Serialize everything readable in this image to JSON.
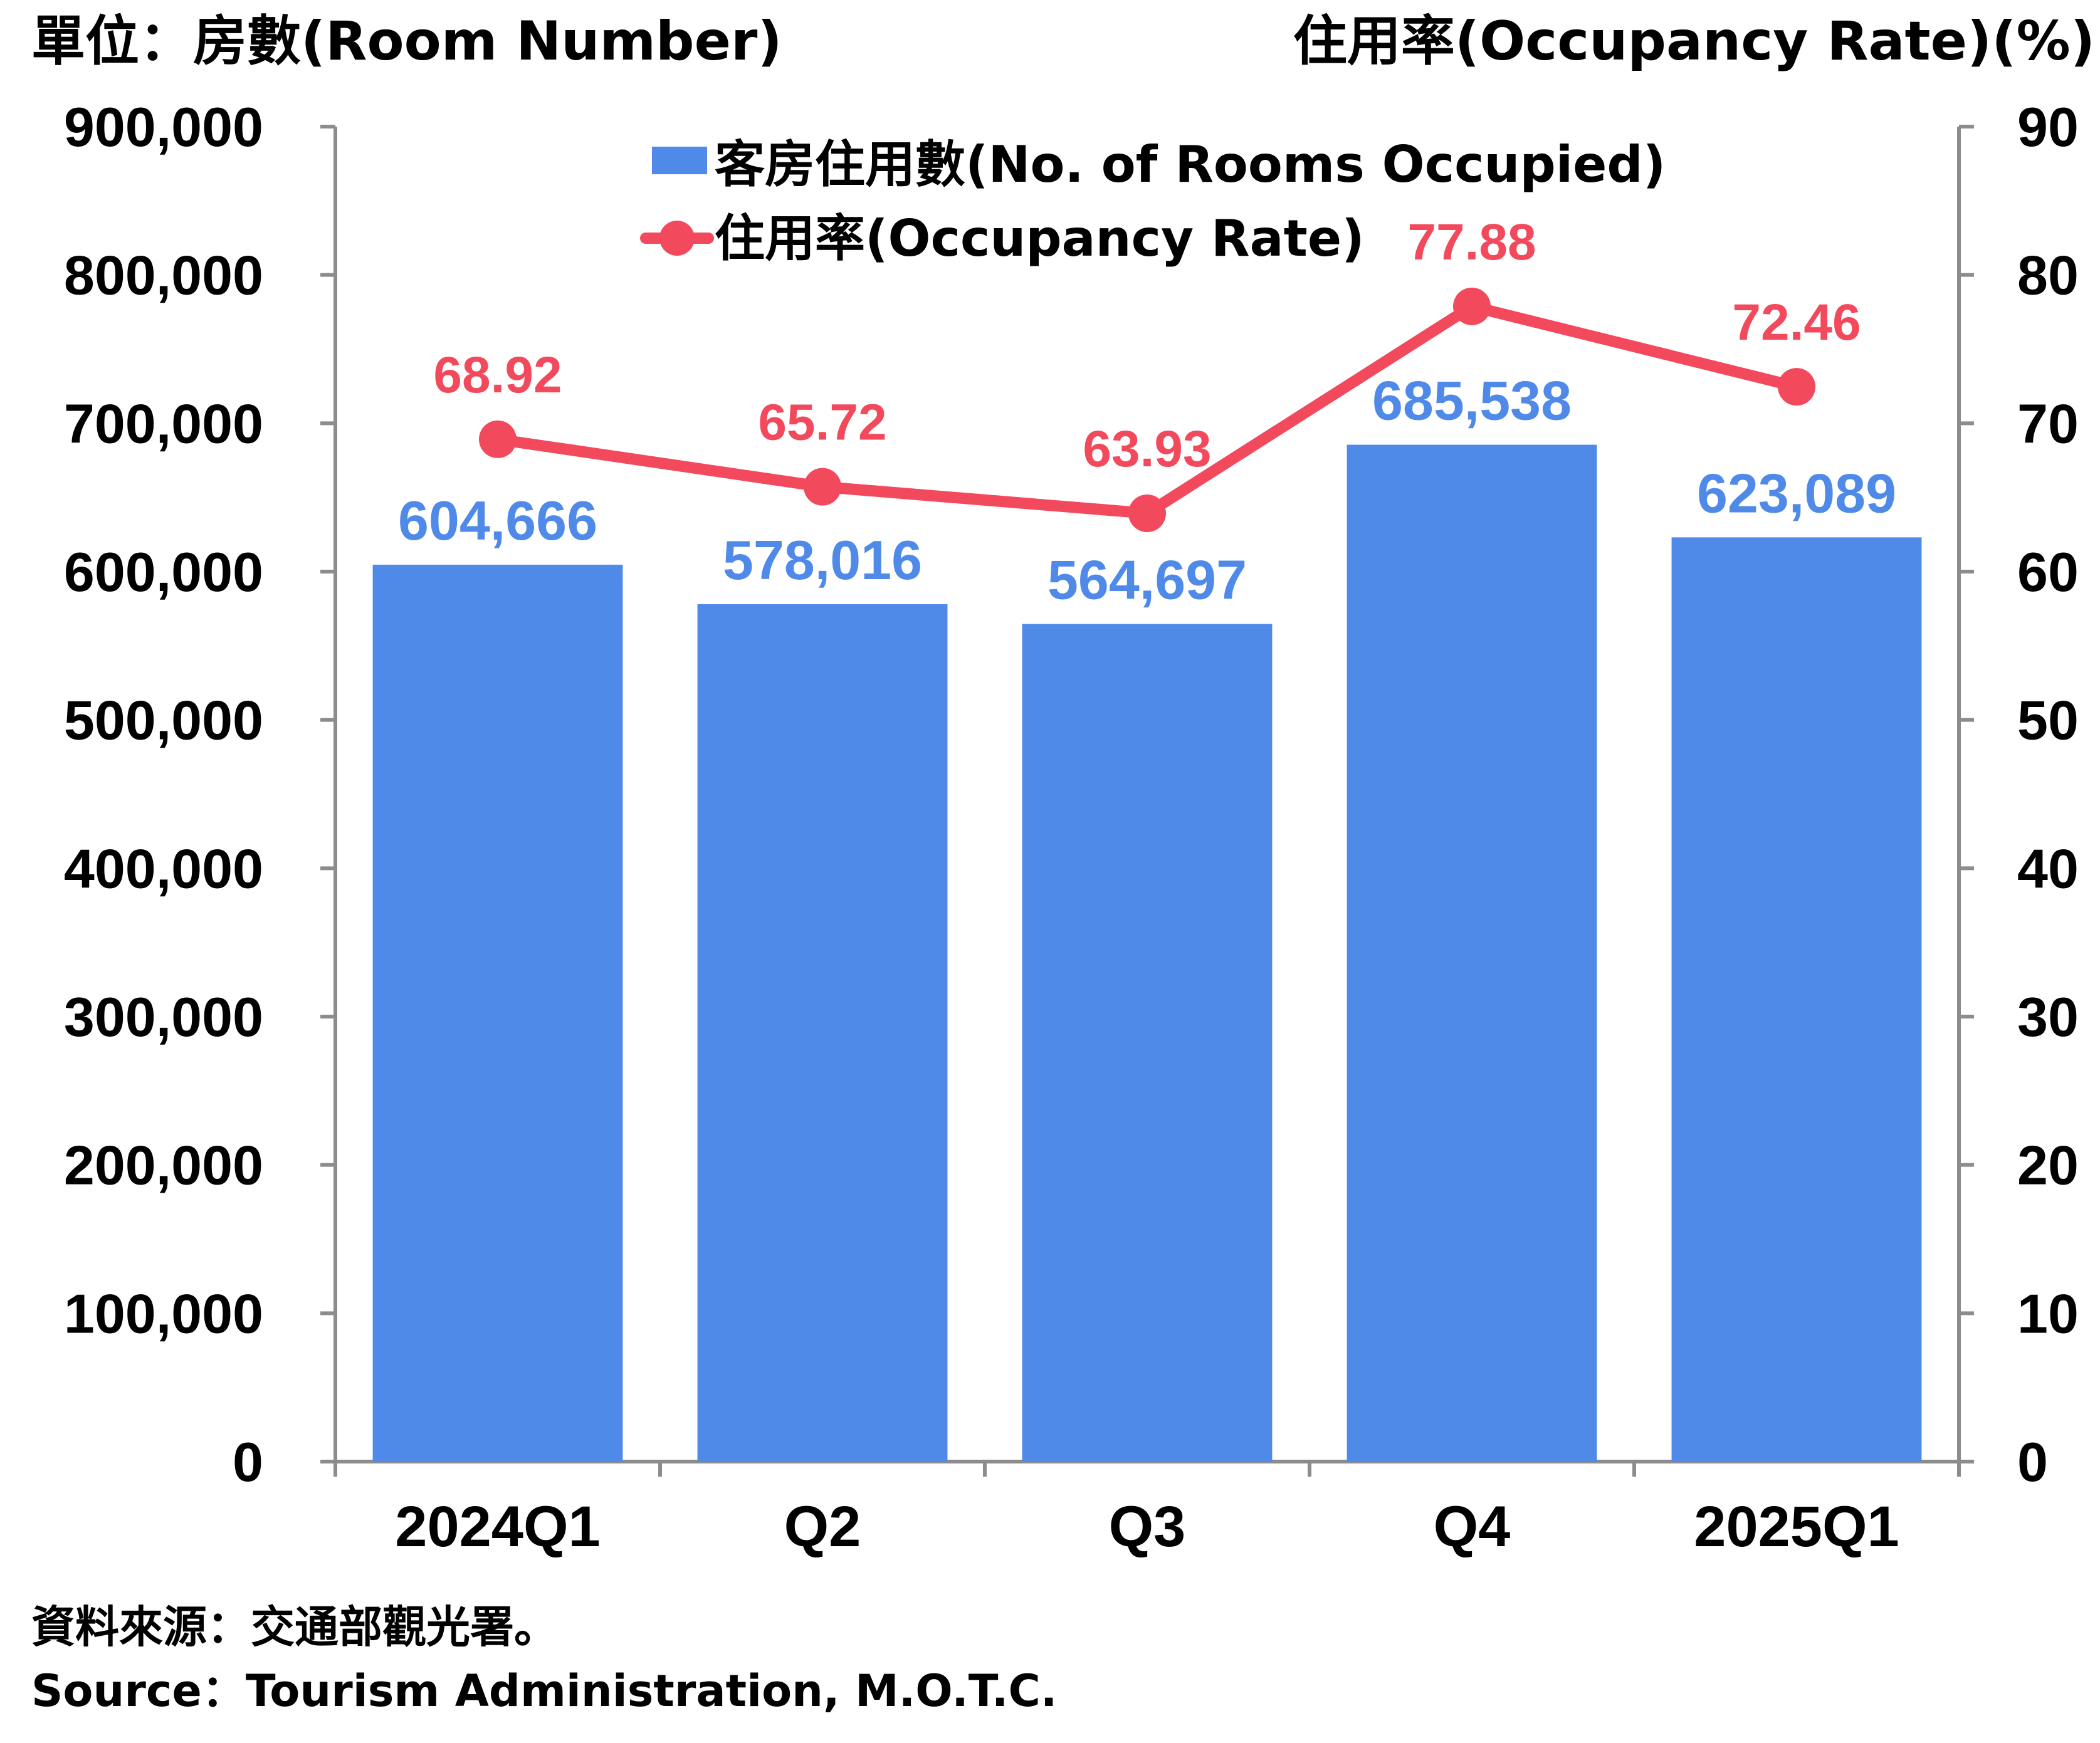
{
  "chart_data": {
    "type": "bar",
    "categories": [
      "2024Q1",
      "Q2",
      "Q3",
      "Q4",
      "2025Q1"
    ],
    "series": [
      {
        "name": "客房住用數(No. of Rooms Occupied)",
        "type": "bar",
        "axis": "left",
        "values": [
          604666,
          578016,
          564697,
          685538,
          623089
        ],
        "labels": [
          "604,666",
          "578,016",
          "564,697",
          "685,538",
          "623,089"
        ],
        "color": "#4f8ae9"
      },
      {
        "name": "住用率(Occupancy Rate)",
        "type": "line",
        "axis": "right",
        "values": [
          68.92,
          65.72,
          63.93,
          77.88,
          72.46
        ],
        "labels": [
          "68.92",
          "65.72",
          "63.93",
          "77.88",
          "72.46"
        ],
        "color": "#f2495c"
      }
    ],
    "left_axis": {
      "label": "單位：房數(Room Number)",
      "ylim": [
        0,
        900000
      ],
      "ticks": [
        "0",
        "100,000",
        "200,000",
        "300,000",
        "400,000",
        "500,000",
        "600,000",
        "700,000",
        "800,000",
        "900,000"
      ]
    },
    "right_axis": {
      "label": "住用率(Occupancy Rate)(%)",
      "ylim": [
        0,
        90
      ],
      "ticks": [
        "0",
        "10",
        "20",
        "30",
        "40",
        "50",
        "60",
        "70",
        "80",
        "90"
      ]
    },
    "grid": false,
    "legend_position": "top-center"
  },
  "source": {
    "line_zh": "資料來源：交通部觀光署。",
    "line_en": "Source：Tourism Administration, M.O.T.C."
  }
}
